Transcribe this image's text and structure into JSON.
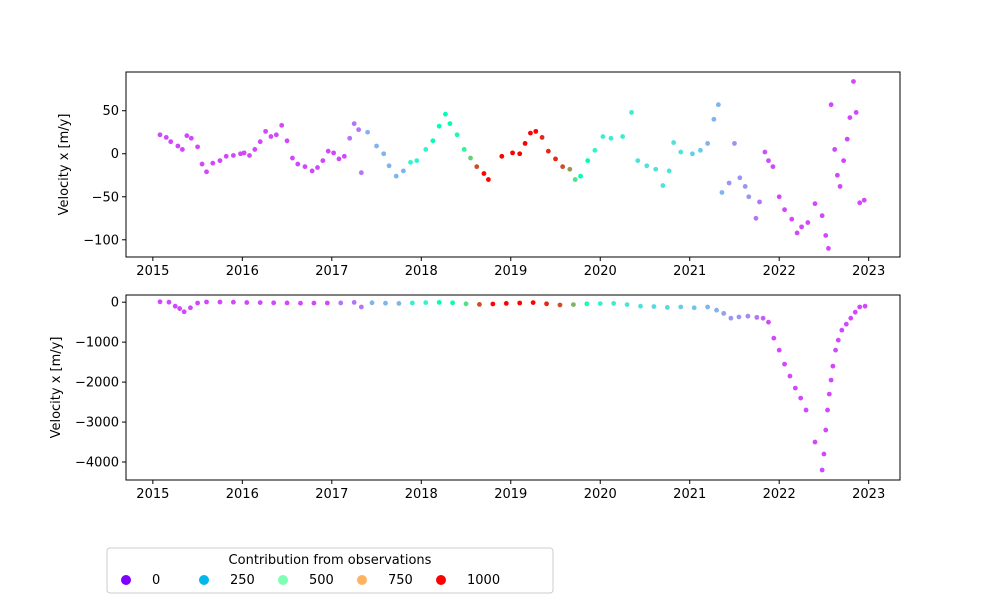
{
  "chart_data": [
    {
      "type": "scatter",
      "title": "",
      "xlabel": "",
      "ylabel": "Velocity x [m/y]",
      "xlim": [
        2014.7,
        2023.35
      ],
      "ylim": [
        -120,
        95
      ],
      "xticks": [
        2015,
        2016,
        2017,
        2018,
        2019,
        2020,
        2021,
        2022,
        2023
      ],
      "yticks": [
        50,
        0,
        -50,
        -100
      ],
      "grid": false,
      "points": [
        [
          2015.08,
          22,
          90
        ],
        [
          2015.15,
          19,
          90
        ],
        [
          2015.2,
          14,
          90
        ],
        [
          2015.28,
          9,
          90
        ],
        [
          2015.33,
          5,
          90
        ],
        [
          2015.38,
          21,
          90
        ],
        [
          2015.43,
          18,
          90
        ],
        [
          2015.5,
          8,
          90
        ],
        [
          2015.55,
          -12,
          90
        ],
        [
          2015.6,
          -21,
          90
        ],
        [
          2015.67,
          -11,
          90
        ],
        [
          2015.75,
          -8,
          90
        ],
        [
          2015.82,
          -3,
          90
        ],
        [
          2015.9,
          -2,
          90
        ],
        [
          2015.98,
          0,
          90
        ],
        [
          2016.02,
          1,
          90
        ],
        [
          2016.08,
          -2,
          90
        ],
        [
          2016.14,
          5,
          90
        ],
        [
          2016.2,
          14,
          90
        ],
        [
          2016.26,
          26,
          90
        ],
        [
          2016.32,
          20,
          90
        ],
        [
          2016.38,
          22,
          90
        ],
        [
          2016.44,
          33,
          90
        ],
        [
          2016.5,
          15,
          90
        ],
        [
          2016.56,
          -5,
          90
        ],
        [
          2016.62,
          -12,
          90
        ],
        [
          2016.7,
          -15,
          90
        ],
        [
          2016.78,
          -20,
          90
        ],
        [
          2016.84,
          -16,
          90
        ],
        [
          2016.9,
          -8,
          90
        ],
        [
          2016.96,
          3,
          90
        ],
        [
          2017.02,
          1,
          90
        ],
        [
          2017.08,
          -6,
          90
        ],
        [
          2017.14,
          -3,
          90
        ],
        [
          2017.2,
          18,
          150
        ],
        [
          2017.25,
          35,
          150
        ],
        [
          2017.3,
          28,
          150
        ],
        [
          2017.33,
          -22,
          150
        ],
        [
          2017.4,
          25,
          250
        ],
        [
          2017.5,
          9,
          250
        ],
        [
          2017.58,
          0,
          250
        ],
        [
          2017.64,
          -14,
          250
        ],
        [
          2017.72,
          -26,
          250
        ],
        [
          2017.8,
          -20,
          250
        ],
        [
          2017.88,
          -10,
          400
        ],
        [
          2017.95,
          -8,
          400
        ],
        [
          2018.05,
          5,
          400
        ],
        [
          2018.13,
          15,
          500
        ],
        [
          2018.2,
          32,
          500
        ],
        [
          2018.27,
          46,
          500
        ],
        [
          2018.32,
          35,
          500
        ],
        [
          2018.4,
          22,
          550
        ],
        [
          2018.48,
          5,
          600
        ],
        [
          2018.55,
          -5,
          700
        ],
        [
          2018.62,
          -15,
          900
        ],
        [
          2018.7,
          -23,
          1000
        ],
        [
          2018.75,
          -30,
          1000
        ],
        [
          2018.9,
          -3,
          1000
        ],
        [
          2019.02,
          1,
          1000
        ],
        [
          2019.1,
          0,
          1000
        ],
        [
          2019.16,
          12,
          1000
        ],
        [
          2019.22,
          24,
          1000
        ],
        [
          2019.28,
          26,
          1000
        ],
        [
          2019.35,
          19,
          950
        ],
        [
          2019.42,
          3,
          950
        ],
        [
          2019.5,
          -6,
          950
        ],
        [
          2019.58,
          -15,
          900
        ],
        [
          2019.66,
          -18,
          800
        ],
        [
          2019.72,
          -30,
          650
        ],
        [
          2019.78,
          -26,
          500
        ],
        [
          2019.86,
          -8,
          500
        ],
        [
          2019.94,
          4,
          400
        ],
        [
          2020.03,
          20,
          380
        ],
        [
          2020.12,
          18,
          380
        ],
        [
          2020.25,
          20,
          380
        ],
        [
          2020.35,
          48,
          380
        ],
        [
          2020.42,
          -8,
          350
        ],
        [
          2020.52,
          -14,
          350
        ],
        [
          2020.62,
          -18,
          350
        ],
        [
          2020.7,
          -37,
          350
        ],
        [
          2020.77,
          -20,
          350
        ],
        [
          2020.82,
          13,
          350
        ],
        [
          2020.9,
          2,
          350
        ],
        [
          2021.03,
          0,
          300
        ],
        [
          2021.12,
          4,
          300
        ],
        [
          2021.2,
          12,
          250
        ],
        [
          2021.27,
          40,
          250
        ],
        [
          2021.32,
          57,
          250
        ],
        [
          2021.36,
          -45,
          250
        ],
        [
          2021.44,
          -34,
          200
        ],
        [
          2021.5,
          12,
          200
        ],
        [
          2021.56,
          -28,
          200
        ],
        [
          2021.62,
          -38,
          200
        ],
        [
          2021.66,
          -50,
          200
        ],
        [
          2021.74,
          -75,
          150
        ],
        [
          2021.78,
          -56,
          150
        ],
        [
          2021.84,
          2,
          100
        ],
        [
          2021.88,
          -8,
          100
        ],
        [
          2021.93,
          -15,
          90
        ],
        [
          2022.0,
          -50,
          90
        ],
        [
          2022.06,
          -65,
          90
        ],
        [
          2022.14,
          -76,
          90
        ],
        [
          2022.2,
          -92,
          90
        ],
        [
          2022.25,
          -85,
          90
        ],
        [
          2022.32,
          -80,
          90
        ],
        [
          2022.4,
          -58,
          90
        ],
        [
          2022.48,
          -72,
          90
        ],
        [
          2022.52,
          -95,
          90
        ],
        [
          2022.55,
          -110,
          90
        ],
        [
          2022.58,
          57,
          90
        ],
        [
          2022.62,
          5,
          90
        ],
        [
          2022.65,
          -25,
          90
        ],
        [
          2022.68,
          -38,
          90
        ],
        [
          2022.72,
          -8,
          90
        ],
        [
          2022.76,
          17,
          90
        ],
        [
          2022.79,
          42,
          90
        ],
        [
          2022.83,
          84,
          90
        ],
        [
          2022.86,
          48,
          90
        ],
        [
          2022.9,
          -57,
          90
        ],
        [
          2022.95,
          -54,
          90
        ]
      ]
    },
    {
      "type": "scatter",
      "title": "",
      "xlabel": "",
      "ylabel": "Velocity x [m/y]",
      "xlim": [
        2014.7,
        2023.35
      ],
      "ylim": [
        -4450,
        180
      ],
      "xticks": [
        2015,
        2016,
        2017,
        2018,
        2019,
        2020,
        2021,
        2022,
        2023
      ],
      "yticks": [
        0,
        -1000,
        -2000,
        -3000,
        -4000
      ],
      "grid": false,
      "points": [
        [
          2015.08,
          10,
          90
        ],
        [
          2015.18,
          0,
          90
        ],
        [
          2015.25,
          -100,
          90
        ],
        [
          2015.3,
          -160,
          90
        ],
        [
          2015.35,
          -240,
          90
        ],
        [
          2015.42,
          -140,
          90
        ],
        [
          2015.5,
          -20,
          90
        ],
        [
          2015.6,
          5,
          90
        ],
        [
          2015.75,
          3,
          90
        ],
        [
          2015.9,
          0,
          90
        ],
        [
          2016.05,
          -8,
          90
        ],
        [
          2016.2,
          -10,
          90
        ],
        [
          2016.35,
          -15,
          90
        ],
        [
          2016.5,
          -18,
          90
        ],
        [
          2016.65,
          -25,
          90
        ],
        [
          2016.8,
          -22,
          90
        ],
        [
          2016.95,
          -20,
          90
        ],
        [
          2017.1,
          -18,
          150
        ],
        [
          2017.25,
          -5,
          150
        ],
        [
          2017.33,
          -120,
          150
        ],
        [
          2017.45,
          -15,
          250
        ],
        [
          2017.6,
          -25,
          250
        ],
        [
          2017.75,
          -30,
          250
        ],
        [
          2017.9,
          -20,
          400
        ],
        [
          2018.05,
          -10,
          400
        ],
        [
          2018.2,
          -5,
          500
        ],
        [
          2018.35,
          -15,
          500
        ],
        [
          2018.5,
          -40,
          650
        ],
        [
          2018.65,
          -55,
          900
        ],
        [
          2018.8,
          -45,
          1000
        ],
        [
          2018.95,
          -30,
          1000
        ],
        [
          2019.1,
          -20,
          1000
        ],
        [
          2019.25,
          -10,
          1000
        ],
        [
          2019.4,
          -40,
          950
        ],
        [
          2019.55,
          -70,
          900
        ],
        [
          2019.7,
          -60,
          750
        ],
        [
          2019.85,
          -40,
          550
        ],
        [
          2020.0,
          -35,
          400
        ],
        [
          2020.15,
          -30,
          380
        ],
        [
          2020.3,
          -60,
          350
        ],
        [
          2020.45,
          -100,
          350
        ],
        [
          2020.6,
          -110,
          320
        ],
        [
          2020.75,
          -130,
          320
        ],
        [
          2020.9,
          -120,
          300
        ],
        [
          2021.05,
          -140,
          280
        ],
        [
          2021.2,
          -120,
          250
        ],
        [
          2021.3,
          -200,
          240
        ],
        [
          2021.38,
          -280,
          220
        ],
        [
          2021.46,
          -400,
          200
        ],
        [
          2021.55,
          -370,
          200
        ],
        [
          2021.65,
          -350,
          180
        ],
        [
          2021.75,
          -380,
          150
        ],
        [
          2021.82,
          -400,
          120
        ],
        [
          2021.88,
          -500,
          90
        ],
        [
          2021.94,
          -900,
          90
        ],
        [
          2022.0,
          -1200,
          90
        ],
        [
          2022.06,
          -1550,
          90
        ],
        [
          2022.12,
          -1850,
          90
        ],
        [
          2022.18,
          -2150,
          90
        ],
        [
          2022.24,
          -2400,
          90
        ],
        [
          2022.3,
          -2700,
          90
        ],
        [
          2022.4,
          -3500,
          90
        ],
        [
          2022.48,
          -4200,
          90
        ],
        [
          2022.5,
          -3800,
          90
        ],
        [
          2022.52,
          -3200,
          90
        ],
        [
          2022.54,
          -2700,
          90
        ],
        [
          2022.56,
          -2300,
          90
        ],
        [
          2022.58,
          -1950,
          90
        ],
        [
          2022.6,
          -1600,
          90
        ],
        [
          2022.63,
          -1200,
          90
        ],
        [
          2022.66,
          -950,
          90
        ],
        [
          2022.7,
          -700,
          90
        ],
        [
          2022.75,
          -550,
          90
        ],
        [
          2022.8,
          -400,
          90
        ],
        [
          2022.85,
          -250,
          90
        ],
        [
          2022.9,
          -120,
          90
        ],
        [
          2022.96,
          -100,
          90
        ]
      ]
    }
  ],
  "legend": {
    "title": "Contribution from observations",
    "items": [
      {
        "label": "0",
        "value": 0,
        "color": "#8000ff"
      },
      {
        "label": "250",
        "value": 250,
        "color": "#03b6ec"
      },
      {
        "label": "500",
        "value": 500,
        "color": "#80ffb4"
      },
      {
        "label": "750",
        "value": 750,
        "color": "#ffb360"
      },
      {
        "label": "1000",
        "value": 1000,
        "color": "#ff0000"
      }
    ],
    "placement": "bottom-left"
  }
}
